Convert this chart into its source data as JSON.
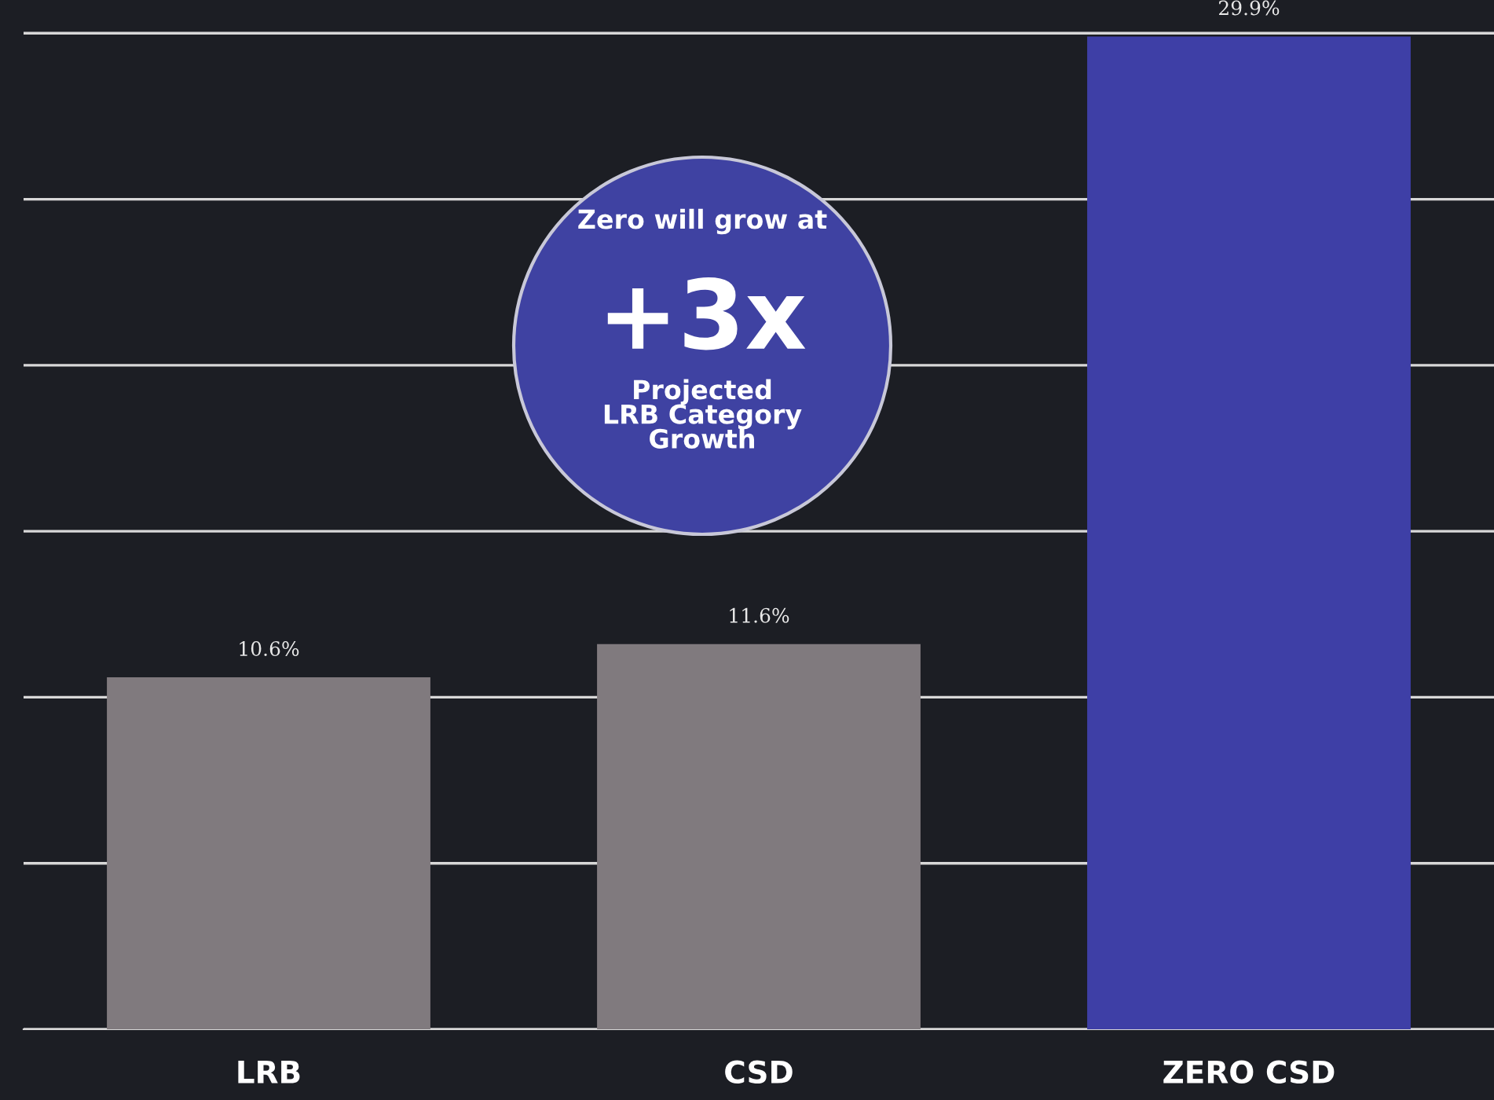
{
  "chart_data": {
    "type": "bar",
    "categories": [
      "LRB",
      "CSD",
      "ZERO CSD"
    ],
    "values": [
      10.6,
      11.6,
      29.9
    ],
    "colors": [
      "#807a7e",
      "#807a7e",
      "#3e3fa6"
    ],
    "value_labels": [
      "10.6%",
      "11.6%",
      "29.9%"
    ],
    "ylim": [
      0,
      31
    ],
    "yticks": [
      {
        "value": 0,
        "label": null
      },
      {
        "value": 5,
        "label": null
      },
      {
        "value": 10,
        "label": null
      },
      {
        "value": 15,
        "label": null
      },
      {
        "value": 20,
        "label": null
      },
      {
        "value": 25,
        "label": null
      },
      {
        "value": 30,
        "label": null
      }
    ],
    "grid": "y",
    "tick_labels": "x",
    "annotations": [
      "Zero will grow at",
      "+3x",
      "Projected\nLRB Category\nGrowth"
    ]
  }
}
